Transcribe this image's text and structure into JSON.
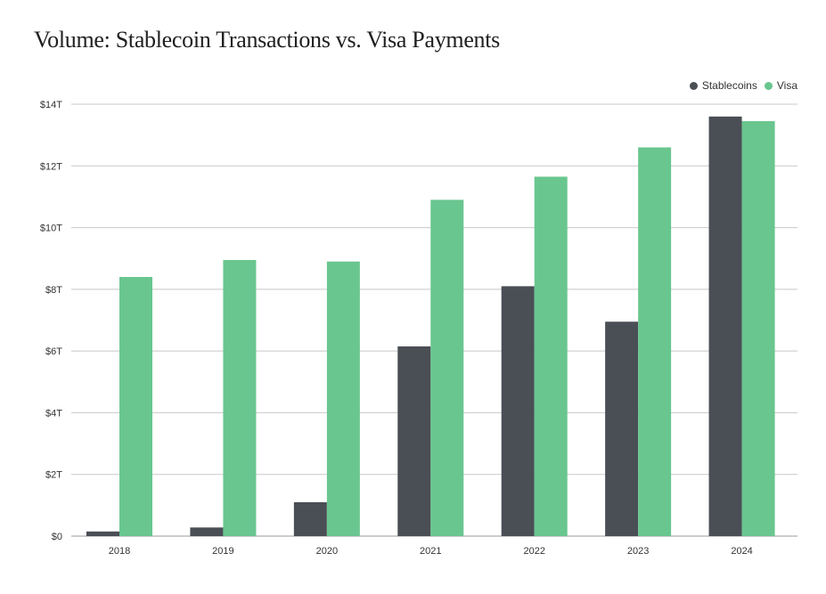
{
  "colors": {
    "stablecoins": "#4a4e55",
    "visa": "#69c68f",
    "grid": "#c8c8c8",
    "axis": "#9a9a9a"
  },
  "chart_data": {
    "type": "bar",
    "title": "Volume: Stablecoin Transactions vs. Visa Payments",
    "xlabel": "",
    "ylabel": "",
    "categories": [
      "2018",
      "2019",
      "2020",
      "2021",
      "2022",
      "2023",
      "2024"
    ],
    "series": [
      {
        "name": "Stablecoins",
        "color": "#4a4e55",
        "values": [
          0.15,
          0.28,
          1.1,
          6.15,
          8.1,
          6.95,
          13.6
        ]
      },
      {
        "name": "Visa",
        "color": "#69c68f",
        "values": [
          8.4,
          8.95,
          8.9,
          10.9,
          11.65,
          12.6,
          13.45
        ]
      }
    ],
    "ylim": [
      0,
      14
    ],
    "yticks": [
      0,
      2,
      4,
      6,
      8,
      10,
      12,
      14
    ],
    "ytick_labels": [
      "$0",
      "$2T",
      "$4T",
      "$6T",
      "$8T",
      "$10T",
      "$12T",
      "$14T"
    ],
    "grid": true,
    "legend_position": "top-right"
  }
}
